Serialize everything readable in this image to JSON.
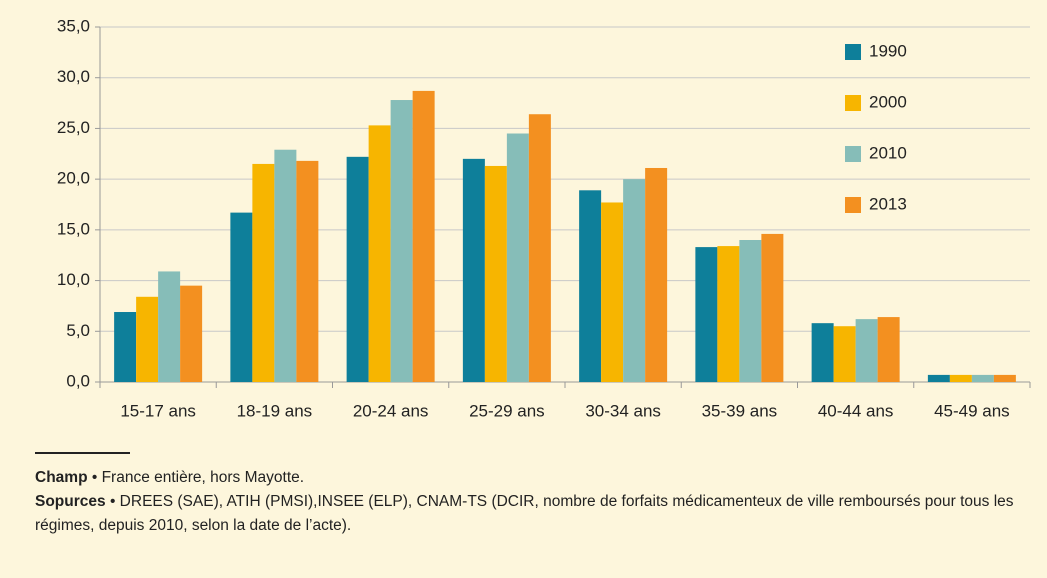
{
  "chart_data": {
    "type": "bar",
    "categories": [
      "15-17 ans",
      "18-19 ans",
      "20-24 ans",
      "25-29 ans",
      "30-34 ans",
      "35-39 ans",
      "40-44 ans",
      "45-49 ans"
    ],
    "series": [
      {
        "name": "1990",
        "color": "#0e7f9a",
        "values": [
          6.9,
          16.7,
          22.2,
          22.0,
          18.9,
          13.3,
          5.8,
          0.7
        ]
      },
      {
        "name": "2000",
        "color": "#f7b500",
        "values": [
          8.4,
          21.5,
          25.3,
          21.3,
          17.7,
          13.4,
          5.5,
          0.7
        ]
      },
      {
        "name": "2010",
        "color": "#86bdb8",
        "values": [
          10.9,
          22.9,
          27.8,
          24.5,
          20.0,
          14.0,
          6.2,
          0.7
        ]
      },
      {
        "name": "2013",
        "color": "#f39020",
        "values": [
          9.5,
          21.8,
          28.7,
          26.4,
          21.1,
          14.6,
          6.4,
          0.7
        ]
      }
    ],
    "ylim": [
      0,
      35
    ],
    "yticks": [
      {
        "value": 0,
        "label": "0,0"
      },
      {
        "value": 5,
        "label": "5,0"
      },
      {
        "value": 10,
        "label": "10,0"
      },
      {
        "value": 15,
        "label": "15,0"
      },
      {
        "value": 20,
        "label": "20,0"
      },
      {
        "value": 25,
        "label": "25,0"
      },
      {
        "value": 30,
        "label": "30,0"
      },
      {
        "value": 35,
        "label": "35,0"
      }
    ],
    "grid": true,
    "legend": "upper right",
    "notes": [
      {
        "label": "Champ",
        "text": "• France entière, hors Mayotte."
      },
      {
        "label": "Sopurces",
        "text": "• DREES (SAE), ATIH (PMSI),INSEE (ELP), CNAM-TS (DCIR, nombre de forfaits médicamenteux de ville remboursés pour tous les régimes, depuis 2010, selon la date de l’acte)."
      }
    ]
  }
}
